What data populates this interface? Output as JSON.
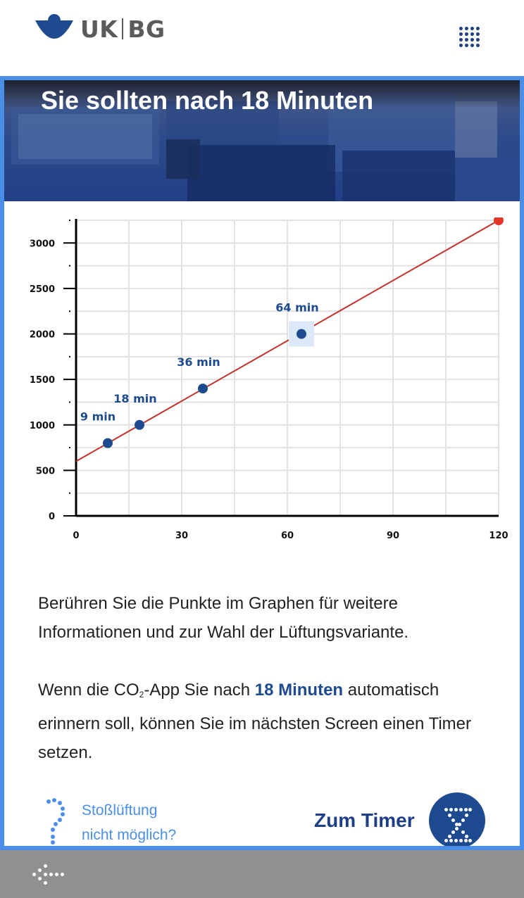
{
  "header": {
    "logo_left": "UK",
    "logo_right": "BG",
    "menu_icon": "grid-dots-icon"
  },
  "hero": {
    "title": "Sie sollten nach 18 Minuten"
  },
  "chart_data": {
    "type": "line",
    "xlim": [
      0,
      120
    ],
    "ylim": [
      0,
      3250
    ],
    "x_ticks": [
      0,
      30,
      60,
      90,
      120
    ],
    "x_tick_labels": [
      "0",
      "30",
      "60",
      "90",
      "120"
    ],
    "y_ticks": [
      0,
      500,
      1000,
      1500,
      2000,
      2500,
      3000
    ],
    "y_tick_labels": [
      "0",
      "500",
      "1000",
      "1500",
      "2000",
      "2500",
      "3000"
    ],
    "grid": true,
    "line": {
      "x": [
        0,
        120
      ],
      "y": [
        600,
        3250
      ],
      "color": "#c0342b"
    },
    "points": [
      {
        "x": 9,
        "y": 800,
        "label": "9 min"
      },
      {
        "x": 18,
        "y": 1000,
        "label": "18 min"
      },
      {
        "x": 36,
        "y": 1400,
        "label": "36 min"
      },
      {
        "x": 64,
        "y": 2000,
        "label": "64 min",
        "highlighted": true
      }
    ],
    "end_point": {
      "x": 120,
      "y": 3250,
      "color": "#e8352b"
    },
    "point_color": "#1e4b90"
  },
  "text": {
    "p1": "Berühren Sie die Punkte im Graphen für weitere Informationen und zur Wahl der Lüftungsvariante.",
    "p2_before": "Wenn die CO",
    "p2_sub": "2",
    "p2_mid": "-App Sie nach ",
    "p2_highlight": "18 Minuten",
    "p2_after": " automatisch erinnern soll, können Sie im nächsten Screen einen Timer setzen."
  },
  "actions": {
    "help_line1": "Stoßlüftung",
    "help_line2": "nicht möglich?",
    "timer_label": "Zum Timer"
  },
  "colors": {
    "brand_blue": "#1e4b90",
    "light_blue": "#4a8ee6",
    "line_red": "#c0342b",
    "bottom_bar": "#909090"
  }
}
